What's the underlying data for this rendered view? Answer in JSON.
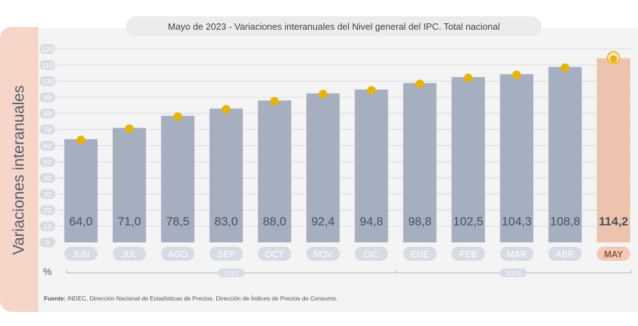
{
  "title": "Mayo de 2023 - Variaciones interanuales del Nivel general del IPC. Total nacional",
  "ylabel": "Variaciones interanuales",
  "unit": "%",
  "footer": {
    "label": "Fuente:",
    "text": "INDEC, Dirección Nacional de Estadísticas de Precios. Dirección de Índices de Precios de Consumo."
  },
  "colors": {
    "bar": "#a6afbf",
    "highlight_bar": "#edc3ae",
    "dot": "#e8b400",
    "pill": "#d6dbe4",
    "highlight_pill": "#f2c9b6"
  },
  "chart_data": {
    "type": "bar",
    "categories": [
      "JUN",
      "JUL",
      "AGO",
      "SEP",
      "OCT",
      "NOV",
      "DIC",
      "ENE",
      "FEB",
      "MAR",
      "ABR",
      "MAY"
    ],
    "values": [
      64.0,
      71.0,
      78.5,
      83.0,
      88.0,
      92.4,
      94.8,
      98.8,
      102.5,
      104.3,
      108.8,
      114.2
    ],
    "labels": [
      "64,0",
      "71,0",
      "78,5",
      "83,0",
      "88,0",
      "92,4",
      "94,8",
      "98,8",
      "102,5",
      "104,3",
      "108,8",
      "114,2"
    ],
    "highlight": "MAY",
    "yticks": [
      0,
      10,
      20,
      30,
      40,
      50,
      60,
      70,
      80,
      90,
      100,
      110,
      120
    ],
    "ylim": [
      0,
      120
    ],
    "grid": true,
    "year_groups": [
      {
        "label": "2022",
        "from": "JUN",
        "to": "DIC"
      },
      {
        "label": "2023",
        "from": "ENE",
        "to": "MAY"
      }
    ]
  }
}
